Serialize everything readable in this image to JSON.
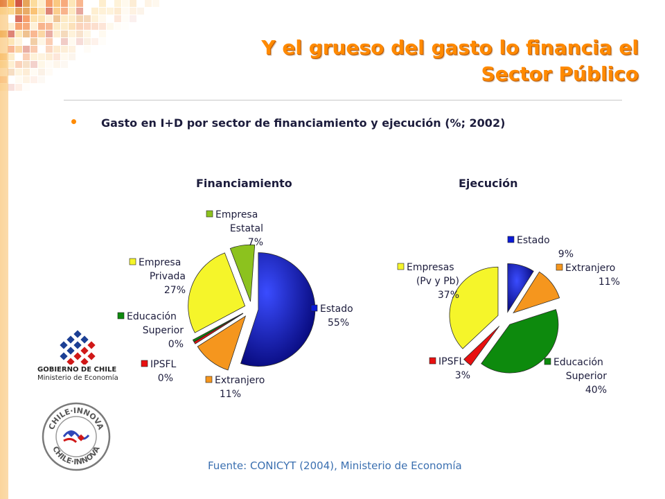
{
  "title_line1": "Y el grueso del gasto lo financia el",
  "title_line2": "Sector Público",
  "subtitle": "Gasto en I+D por sector de financiamiento y ejecución (%; 2002)",
  "source": "Fuente: CONICYT (2004), Ministerio de Economía",
  "logos": {
    "gobierno_line1": "GOBIERNO DE CHILE",
    "gobierno_line2": "Ministerio de Economía",
    "chile_innova": "CHILE·INNOVA"
  },
  "chart_data": [
    {
      "type": "pie",
      "title": "Financiamiento",
      "slices": [
        {
          "label": [
            "Estado"
          ],
          "value": 55,
          "value_label": "55%",
          "color": "#0a1ad6"
        },
        {
          "label": [
            "Extranjero"
          ],
          "value": 11,
          "value_label": "11%",
          "color": "#f5961e"
        },
        {
          "label": [
            "IPSFL"
          ],
          "value": 0,
          "value_label": "0%",
          "color": "#e81010"
        },
        {
          "label": [
            "Educación",
            "Superior"
          ],
          "value": 0,
          "value_label": "0%",
          "color": "#0d8a0d"
        },
        {
          "label": [
            "Empresa",
            "Privada"
          ],
          "value": 27,
          "value_label": "27%",
          "color": "#f5f52a"
        },
        {
          "label": [
            "Empresa",
            "Estatal"
          ],
          "value": 7,
          "value_label": "7%",
          "color": "#8cc21e"
        }
      ]
    },
    {
      "type": "pie",
      "title": "Ejecución",
      "slices": [
        {
          "label": [
            "Estado"
          ],
          "value": 9,
          "value_label": "9%",
          "color": "#0a1ad6"
        },
        {
          "label": [
            "Extranjero"
          ],
          "value": 11,
          "value_label": "11%",
          "color": "#f5961e"
        },
        {
          "label": [
            "Educación",
            "Superior"
          ],
          "value": 40,
          "value_label": "40%",
          "color": "#0d8a0d"
        },
        {
          "label": [
            "IPSFL"
          ],
          "value": 3,
          "value_label": "3%",
          "color": "#e81010"
        },
        {
          "label": [
            "Empresas",
            "(Pv y Pb)"
          ],
          "value": 37,
          "value_label": "37%",
          "color": "#f5f52a"
        }
      ]
    }
  ]
}
